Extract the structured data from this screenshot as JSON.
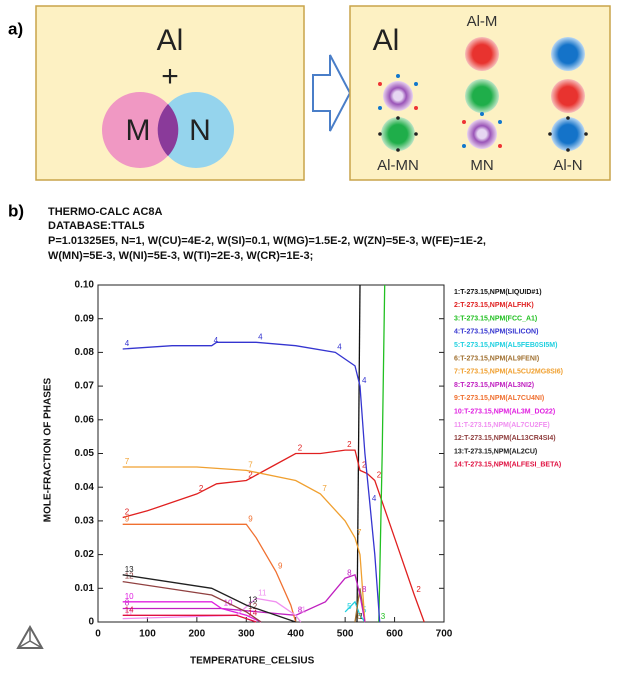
{
  "diagram": {
    "panel_label": "a)",
    "left": {
      "base": "Al",
      "plus": "+",
      "m": "M",
      "n": "N"
    },
    "right": {
      "base": "Al",
      "al_m": "Al-M",
      "al_mn": "Al-MN",
      "mn": "MN",
      "al_n": "Al-N"
    }
  },
  "chart_data": {
    "type": "line",
    "panel_label": "b)",
    "title": "THERMO-CALC   AC8A",
    "subtitle": "DATABASE:TTAL5",
    "conditions": [
      "P=1.01325E5, N=1, W(CU)=4E-2, W(SI)=0.1, W(MG)=1.5E-2, W(ZN)=5E-3, W(FE)=1E-2,",
      "W(MN)=5E-3, W(NI)=5E-3, W(TI)=2E-3, W(CR)=1E-3;"
    ],
    "x_label": "TEMPERATURE_CELSIUS",
    "y_label": "MOLE-FRACTION OF PHASES",
    "xlim": [
      0,
      700
    ],
    "xticks": [
      0,
      100,
      200,
      300,
      400,
      500,
      600,
      700
    ],
    "ylim": [
      0,
      0.1
    ],
    "yticks": [
      0,
      0.01,
      0.02,
      0.03,
      0.04,
      0.05,
      0.06,
      0.07,
      0.08,
      0.09,
      {
        "value": 0.1,
        "label": "0.10"
      }
    ],
    "series": [
      {
        "name": "1:T-273.15,NPM(LIQUID#1)",
        "label": "1",
        "color": "#111111",
        "x": [
          524,
          527,
          530
        ],
        "values": [
          0,
          0.05,
          0.1
        ]
      },
      {
        "name": "2:T-273.15,NPM(ALFHK)",
        "label": "2",
        "color": "#e02020",
        "x": [
          50,
          100,
          200,
          240,
          300,
          350,
          400,
          450,
          500,
          520,
          530,
          545,
          560,
          600,
          640,
          660
        ],
        "values": [
          0.031,
          0.033,
          0.038,
          0.041,
          0.042,
          0.046,
          0.05,
          0.05,
          0.051,
          0.051,
          0.045,
          0.044,
          0.042,
          0.025,
          0.008,
          0
        ]
      },
      {
        "name": "3:T-273.15,NPM(FCC_A1)",
        "label": "3",
        "color": "#22c022",
        "x": [
          568,
          575,
          580
        ],
        "values": [
          0,
          0.05,
          0.1
        ]
      },
      {
        "name": "4:T-273.15,NPM(SILICON)",
        "label": "4",
        "color": "#3535d0",
        "x": [
          50,
          150,
          230,
          240,
          320,
          400,
          480,
          520,
          530,
          540,
          550,
          560,
          570
        ],
        "values": [
          0.081,
          0.082,
          0.082,
          0.083,
          0.083,
          0.082,
          0.08,
          0.076,
          0.07,
          0.05,
          0.035,
          0.02,
          0
        ]
      },
      {
        "name": "5:T-273.15,NPM(AL5FEB0SI5M)",
        "label": "5",
        "color": "#20d0e0",
        "x": [
          500,
          520,
          530,
          540
        ],
        "values": [
          0.003,
          0.006,
          0.002,
          0
        ]
      },
      {
        "name": "6:T-273.15,NPM(AL9FENI)",
        "label": "6",
        "color": "#a07030",
        "x": [
          520,
          530,
          540
        ],
        "values": [
          0,
          0.01,
          0
        ]
      },
      {
        "name": "7:T-273.15,NPM(AL5CU2MG8SI6)",
        "label": "7",
        "color": "#f0a030",
        "x": [
          50,
          200,
          300,
          400,
          450,
          500,
          520,
          530,
          540
        ],
        "values": [
          0.046,
          0.046,
          0.045,
          0.042,
          0.038,
          0.03,
          0.025,
          0.02,
          0
        ]
      },
      {
        "name": "8:T-273.15,NPM(AL3NI2)",
        "label": "8",
        "color": "#c020c0",
        "x": [
          50,
          250,
          400,
          460,
          500,
          520,
          530,
          540
        ],
        "values": [
          0.004,
          0.004,
          0.002,
          0.006,
          0.013,
          0.014,
          0.008,
          0
        ]
      },
      {
        "name": "9:T-273.15,NPM(AL7CU4NI)",
        "label": "9",
        "color": "#f07030",
        "x": [
          50,
          200,
          300,
          320,
          360,
          390,
          400
        ],
        "values": [
          0.029,
          0.029,
          0.029,
          0.025,
          0.015,
          0.005,
          0
        ]
      },
      {
        "name": "10:T-273.15,NPM(AL3M_DO22)",
        "label": "10",
        "color": "#e020e0",
        "x": [
          50,
          230,
          250,
          300,
          330
        ],
        "values": [
          0.006,
          0.006,
          0.004,
          0.002,
          0
        ]
      },
      {
        "name": "11:T-273.15,NPM(AL7CU2FE)",
        "label": "11",
        "color": "#f090f0",
        "x": [
          50,
          280,
          320,
          360,
          400,
          410
        ],
        "values": [
          0.001,
          0.002,
          0.007,
          0.006,
          0.002,
          0
        ]
      },
      {
        "name": "12:T-273.15,NPM(AL13CR4SI4)",
        "label": "12",
        "color": "#904040",
        "x": [
          50,
          230,
          300,
          330
        ],
        "values": [
          0.012,
          0.008,
          0.003,
          0
        ]
      },
      {
        "name": "13:T-273.15,NPM(AL2CU)",
        "label": "13",
        "color": "#202020",
        "x": [
          50,
          230,
          300,
          400
        ],
        "values": [
          0.014,
          0.01,
          0.005,
          0
        ]
      },
      {
        "name": "14:T-273.15,NPM(ALFESI_BETA)",
        "label": "14",
        "color": "#e01040",
        "x": [
          50,
          280,
          300,
          320
        ],
        "values": [
          0.002,
          0.002,
          0.001,
          0
        ]
      }
    ]
  }
}
